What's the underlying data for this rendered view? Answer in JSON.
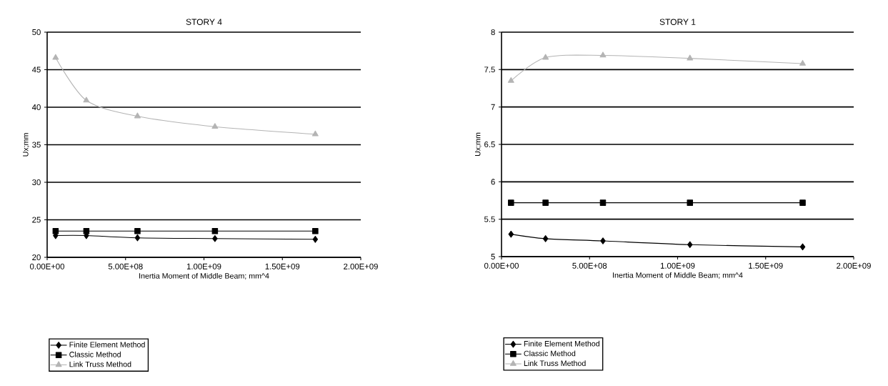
{
  "chart_data": [
    {
      "type": "line",
      "title": "STORY 4",
      "xlabel": "Inertia Moment of Middle Beam; mm^4",
      "ylabel": "Ux;mm",
      "x": [
        54000000,
        250000000,
        576000000,
        1070000000,
        1710000000
      ],
      "series": [
        {
          "name": "Finite Element Method",
          "color": "#000000",
          "marker": "diamond",
          "values": [
            22.9,
            22.9,
            22.6,
            22.5,
            22.4
          ]
        },
        {
          "name": "Classic Method",
          "color": "#000000",
          "marker": "square",
          "values": [
            23.5,
            23.5,
            23.5,
            23.5,
            23.5
          ]
        },
        {
          "name": "Link Truss Method",
          "color": "#b4b4b4",
          "marker": "triangle",
          "values": [
            46.6,
            40.9,
            38.8,
            37.4,
            36.4
          ]
        }
      ],
      "xlim": [
        0,
        2000000000
      ],
      "ylim": [
        20,
        50
      ],
      "xticks": [
        {
          "value": 0,
          "label": "0.00E+00"
        },
        {
          "value": 500000000,
          "label": "5.00E+08"
        },
        {
          "value": 1000000000,
          "label": "1.00E+09"
        },
        {
          "value": 1500000000,
          "label": "1.50E+09"
        },
        {
          "value": 2000000000,
          "label": "2.00E+09"
        }
      ],
      "yticks": [
        20,
        25,
        30,
        35,
        40,
        45,
        50
      ],
      "grid": "y",
      "legend": "bottom left",
      "line_style": "solid"
    },
    {
      "type": "line",
      "title": "STORY 1",
      "xlabel": "Inertia Moment of Middle Beam; mm^4",
      "ylabel": "Ux;mm",
      "x": [
        54000000,
        250000000,
        576000000,
        1070000000,
        1710000000
      ],
      "series": [
        {
          "name": "Finite Element Method",
          "color": "#000000",
          "marker": "diamond",
          "values": [
            5.3,
            5.24,
            5.21,
            5.16,
            5.13
          ]
        },
        {
          "name": "Classic Method",
          "color": "#000000",
          "marker": "square",
          "values": [
            5.72,
            5.72,
            5.72,
            5.72,
            5.72
          ]
        },
        {
          "name": "Link Truss Method",
          "color": "#b4b4b4",
          "marker": "triangle",
          "values": [
            7.35,
            7.66,
            7.69,
            7.65,
            7.58
          ]
        }
      ],
      "xlim": [
        0,
        2000000000
      ],
      "ylim": [
        5,
        8
      ],
      "xticks": [
        {
          "value": 0,
          "label": "0.00E+00"
        },
        {
          "value": 500000000,
          "label": "5.00E+08"
        },
        {
          "value": 1000000000,
          "label": "1.00E+09"
        },
        {
          "value": 1500000000,
          "label": "1.50E+09"
        },
        {
          "value": 2000000000,
          "label": "2.00E+09"
        }
      ],
      "yticks": [
        5,
        5.5,
        6,
        6.5,
        7,
        7.5,
        8
      ],
      "grid": "y",
      "legend": "bottom left",
      "line_style": "solid"
    }
  ]
}
